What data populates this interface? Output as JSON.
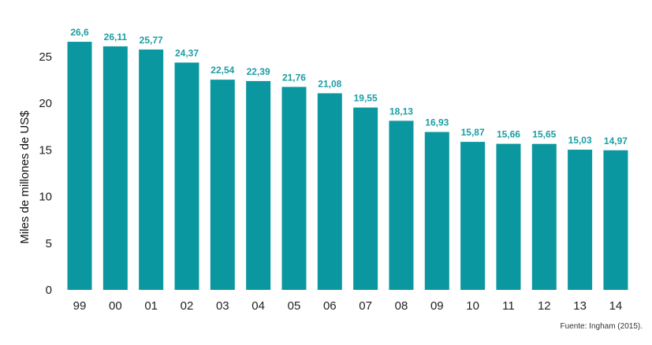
{
  "chart_data": {
    "type": "bar",
    "categories": [
      "99",
      "00",
      "01",
      "02",
      "03",
      "04",
      "05",
      "06",
      "07",
      "08",
      "09",
      "10",
      "11",
      "12",
      "13",
      "14"
    ],
    "values": [
      26.6,
      26.11,
      25.77,
      24.37,
      22.54,
      22.39,
      21.76,
      21.08,
      19.55,
      18.13,
      16.93,
      15.87,
      15.66,
      15.65,
      15.03,
      14.97
    ],
    "data_labels": [
      "26,6",
      "26,11",
      "25,77",
      "24,37",
      "22,54",
      "22,39",
      "21,76",
      "21,08",
      "19,55",
      "18,13",
      "16,93",
      "15,87",
      "15,66",
      "15,65",
      "15,03",
      "14,97"
    ],
    "ylabel": "Miles de millones de US$",
    "xlabel": "",
    "ylim": [
      0,
      25
    ],
    "yticks": [
      0,
      5,
      10,
      15,
      20,
      25
    ],
    "grid": false,
    "bar_color": "#0b979f",
    "label_color": "#1a9ea4"
  },
  "source": "Fuente: Ingham (2015)."
}
